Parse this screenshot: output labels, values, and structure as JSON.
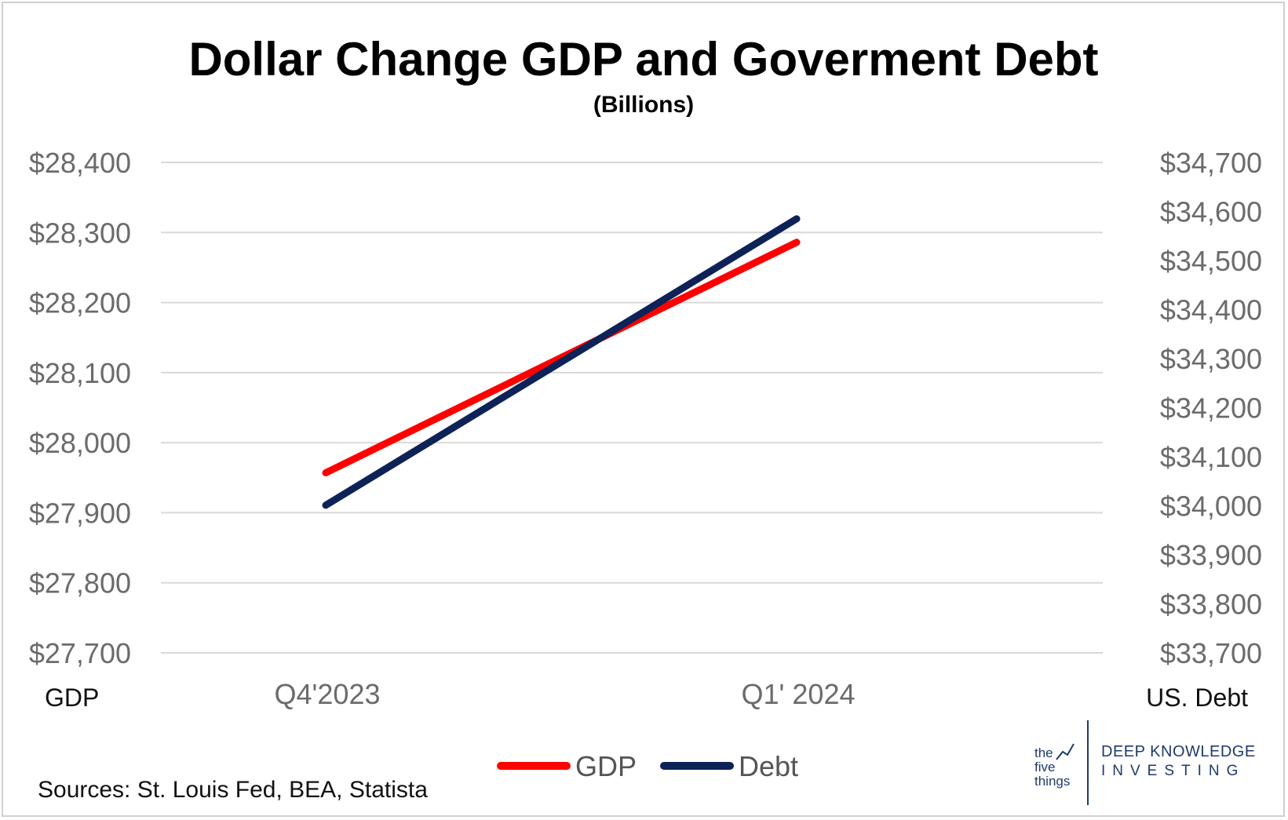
{
  "chart_data": {
    "type": "line",
    "title": "Dollar Change GDP and Goverment Debt",
    "subtitle": "(Billions)",
    "categories": [
      "Q4'2023",
      "Q1' 2024"
    ],
    "series": [
      {
        "name": "GDP",
        "axis": "left",
        "color": "#ff0000",
        "values": [
          27957,
          28286
        ]
      },
      {
        "name": "Debt",
        "axis": "right",
        "color": "#0d2257",
        "values": [
          34001,
          34585
        ]
      }
    ],
    "left_axis": {
      "label": "GDP",
      "ylim": [
        27700,
        28400
      ],
      "ticks": [
        "$27,700",
        "$27,800",
        "$27,900",
        "$28,000",
        "$28,100",
        "$28,200",
        "$28,300",
        "$28,400"
      ]
    },
    "right_axis": {
      "label": "US. Debt",
      "ylim": [
        33700,
        34700
      ],
      "ticks": [
        "$33,700",
        "$33,800",
        "$33,900",
        "$34,000",
        "$34,100",
        "$34,200",
        "$34,300",
        "$34,400",
        "$34,500",
        "$34,600",
        "$34,700"
      ]
    },
    "grid": true,
    "legend_position": "bottom-center"
  },
  "footer": {
    "sources": "Sources: St. Louis Fed, BEA, Statista"
  },
  "logo": {
    "left_lines": [
      "the",
      "five",
      "things"
    ],
    "right_line1": "DEEP KNOWLEDGE",
    "right_line2": "INVESTING"
  },
  "colors": {
    "grid": "#d9d9d9",
    "gdp": "#ff0000",
    "debt": "#0d2257"
  }
}
